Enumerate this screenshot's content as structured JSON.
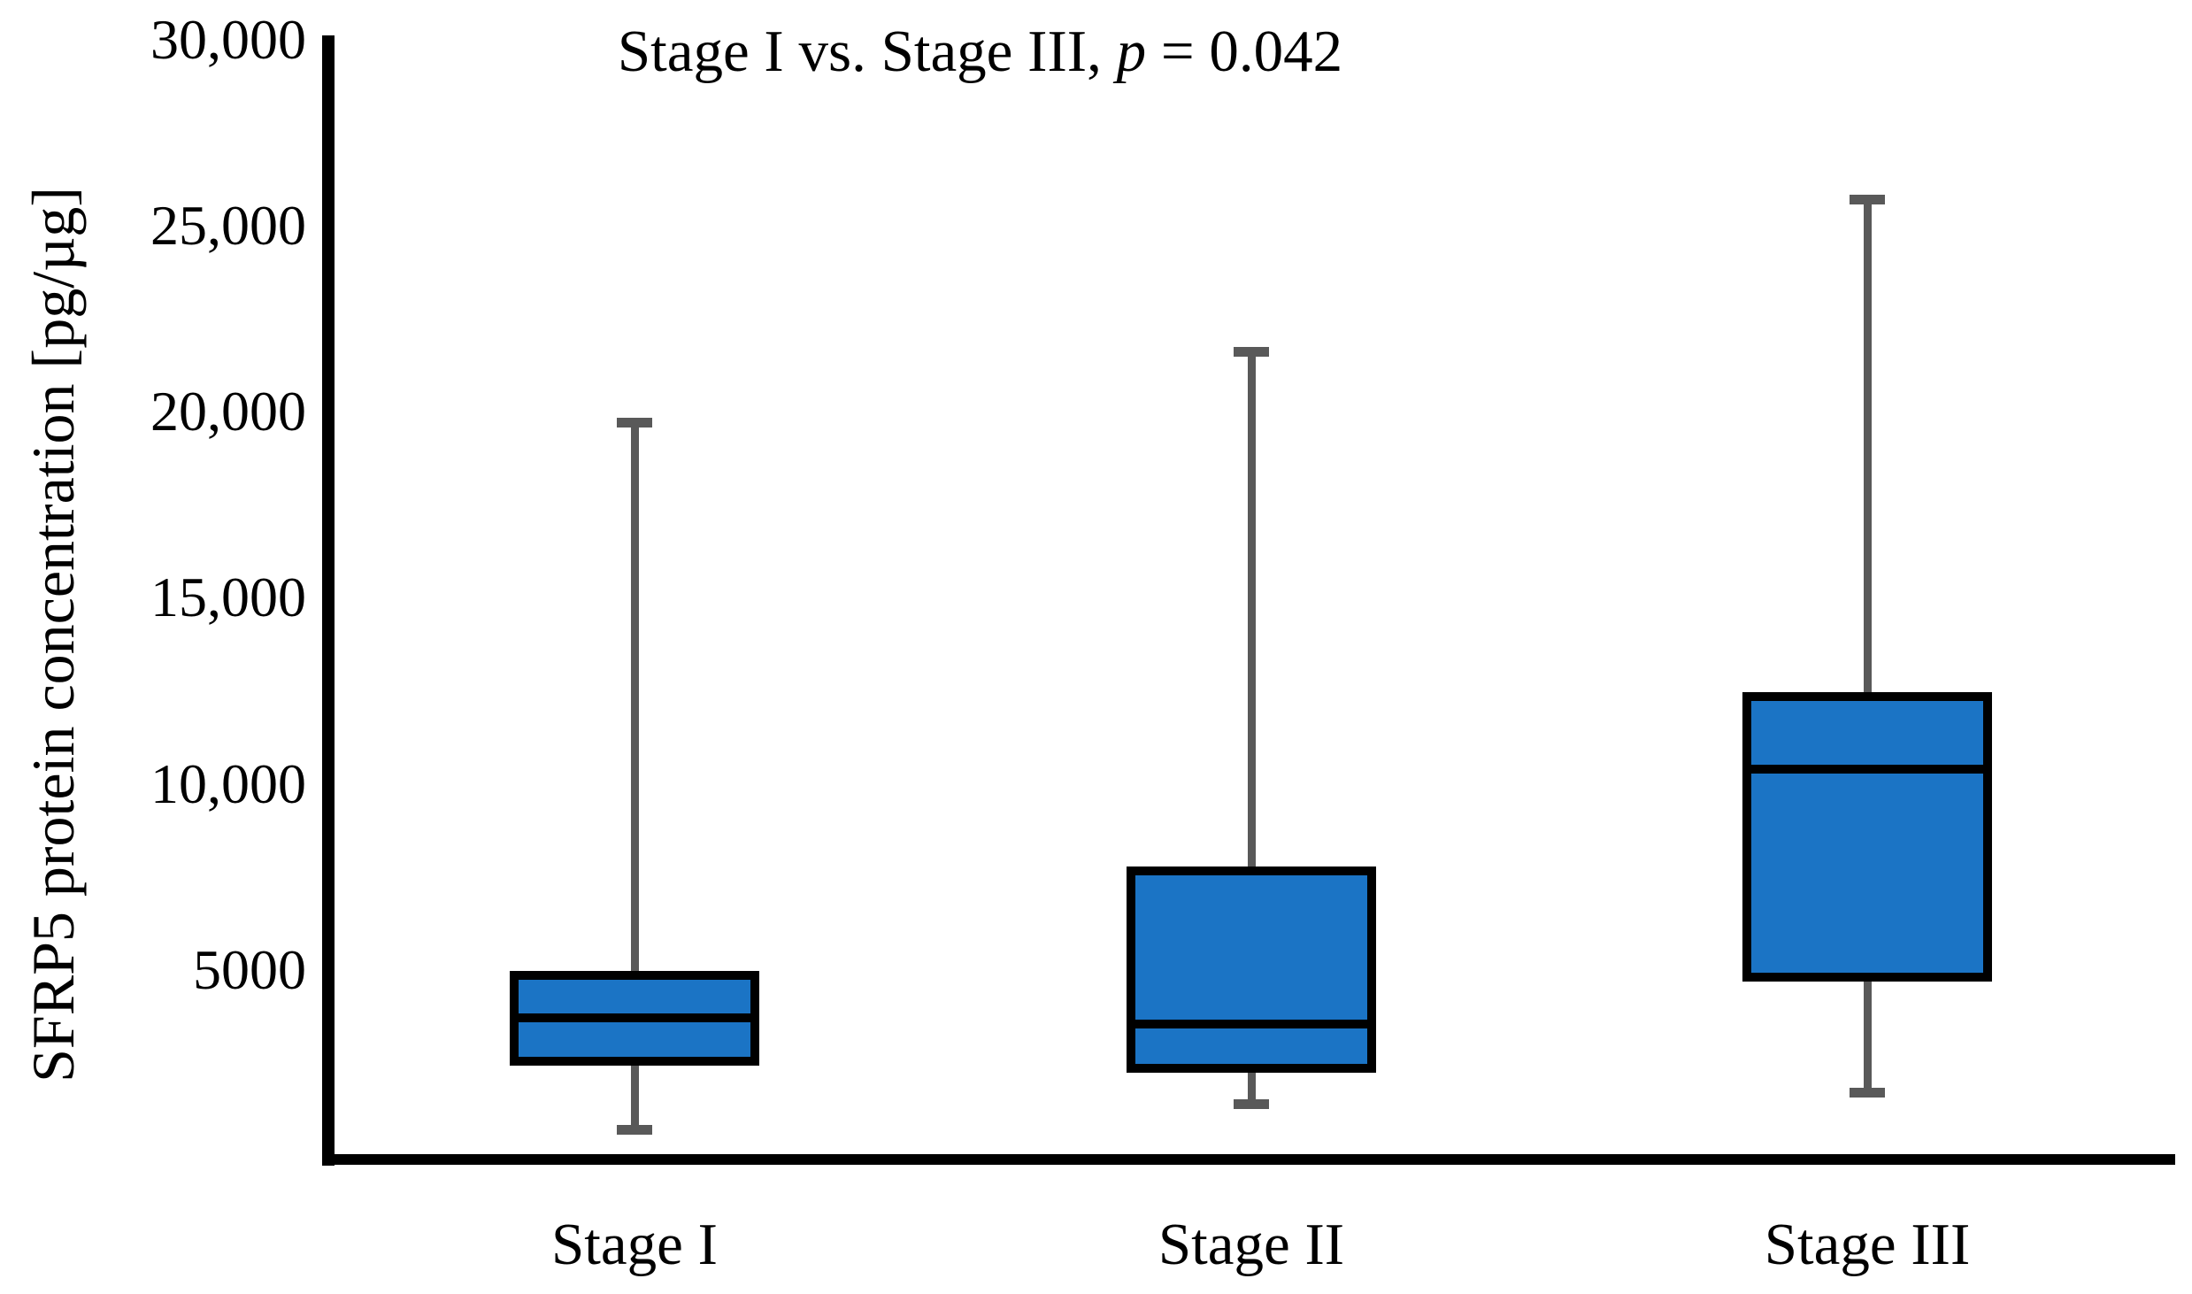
{
  "chart_data": {
    "type": "boxplot",
    "title": {
      "before": "Stage I vs. Stage III, ",
      "p": "p",
      "after": " = 0.042"
    },
    "ylabel": "SFRP5 protein concentration [pg/µg]",
    "xlabel": "",
    "yaxis": {
      "min": 0,
      "max": 30000,
      "tick_interval": 5000,
      "ticks": [
        {
          "value": 30000,
          "label": "30,000"
        },
        {
          "value": 25000,
          "label": "25,000"
        },
        {
          "value": 20000,
          "label": "20,000"
        },
        {
          "value": 15000,
          "label": "15,000"
        },
        {
          "value": 10000,
          "label": "10,000"
        },
        {
          "value": 5000,
          "label": "5000"
        }
      ]
    },
    "categories": [
      "Stage I",
      "Stage II",
      "Stage III"
    ],
    "series": [
      {
        "category": "Stage I",
        "whisker_low": 700,
        "q1": 2550,
        "median": 3700,
        "q3": 4850,
        "whisker_high": 19700
      },
      {
        "category": "Stage II",
        "whisker_low": 1400,
        "q1": 2350,
        "median": 3550,
        "q3": 7650,
        "whisker_high": 21600
      },
      {
        "category": "Stage III",
        "whisker_low": 1700,
        "q1": 4800,
        "median": 10400,
        "q3": 12350,
        "whisker_high": 25700
      }
    ],
    "legend": null,
    "grid": "off",
    "colors": {
      "box_fill": "#1B74C5",
      "box_border": "#000000",
      "whisker": "#595959",
      "axis": "#000000",
      "text": "#000000"
    }
  }
}
